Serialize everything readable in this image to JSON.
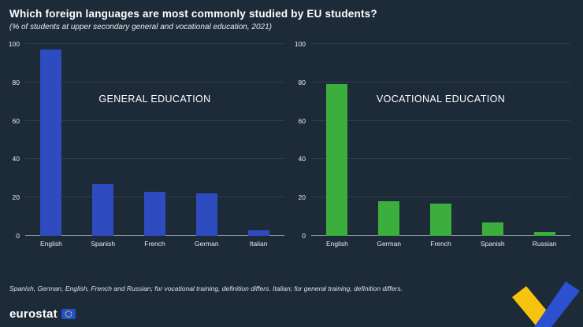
{
  "header": {
    "title": "Which foreign languages are most commonly studied by EU students?",
    "subtitle": "(% of students at upper secondary general and vocational education, 2021)"
  },
  "footnote": "Spanish, German, English, French and Russian; for vocational training, definition differs. Italian; for general training, definition differs.",
  "logo": {
    "text": "eurostat"
  },
  "colors": {
    "background": "#1d2a38",
    "general_bar": "#2e4cc0",
    "vocational_bar": "#3bae3e",
    "gridline": "#2d3d50",
    "baseline": "#8d98a4",
    "eu_flag_blue": "#1e50d0",
    "eu_star_yellow": "#ffd617",
    "ribbon_yellow": "#f6c40e",
    "ribbon_blue": "#2b50d0"
  },
  "chart_data": [
    {
      "type": "bar",
      "title": "GENERAL EDUCATION",
      "categories": [
        "English",
        "Spanish",
        "French",
        "German",
        "Italian"
      ],
      "values": [
        97,
        27,
        23,
        22,
        3
      ],
      "ylim": [
        0,
        100
      ],
      "yticks": [
        0,
        20,
        40,
        60,
        80,
        100
      ],
      "bar_color": "#2e4cc0",
      "grid": true,
      "legend": false
    },
    {
      "type": "bar",
      "title": "VOCATIONAL EDUCATION",
      "categories": [
        "English",
        "German",
        "French",
        "Spanish",
        "Russian"
      ],
      "values": [
        79,
        18,
        17,
        7,
        2
      ],
      "ylim": [
        0,
        100
      ],
      "yticks": [
        0,
        20,
        40,
        60,
        80,
        100
      ],
      "bar_color": "#3bae3e",
      "grid": true,
      "legend": false
    }
  ]
}
